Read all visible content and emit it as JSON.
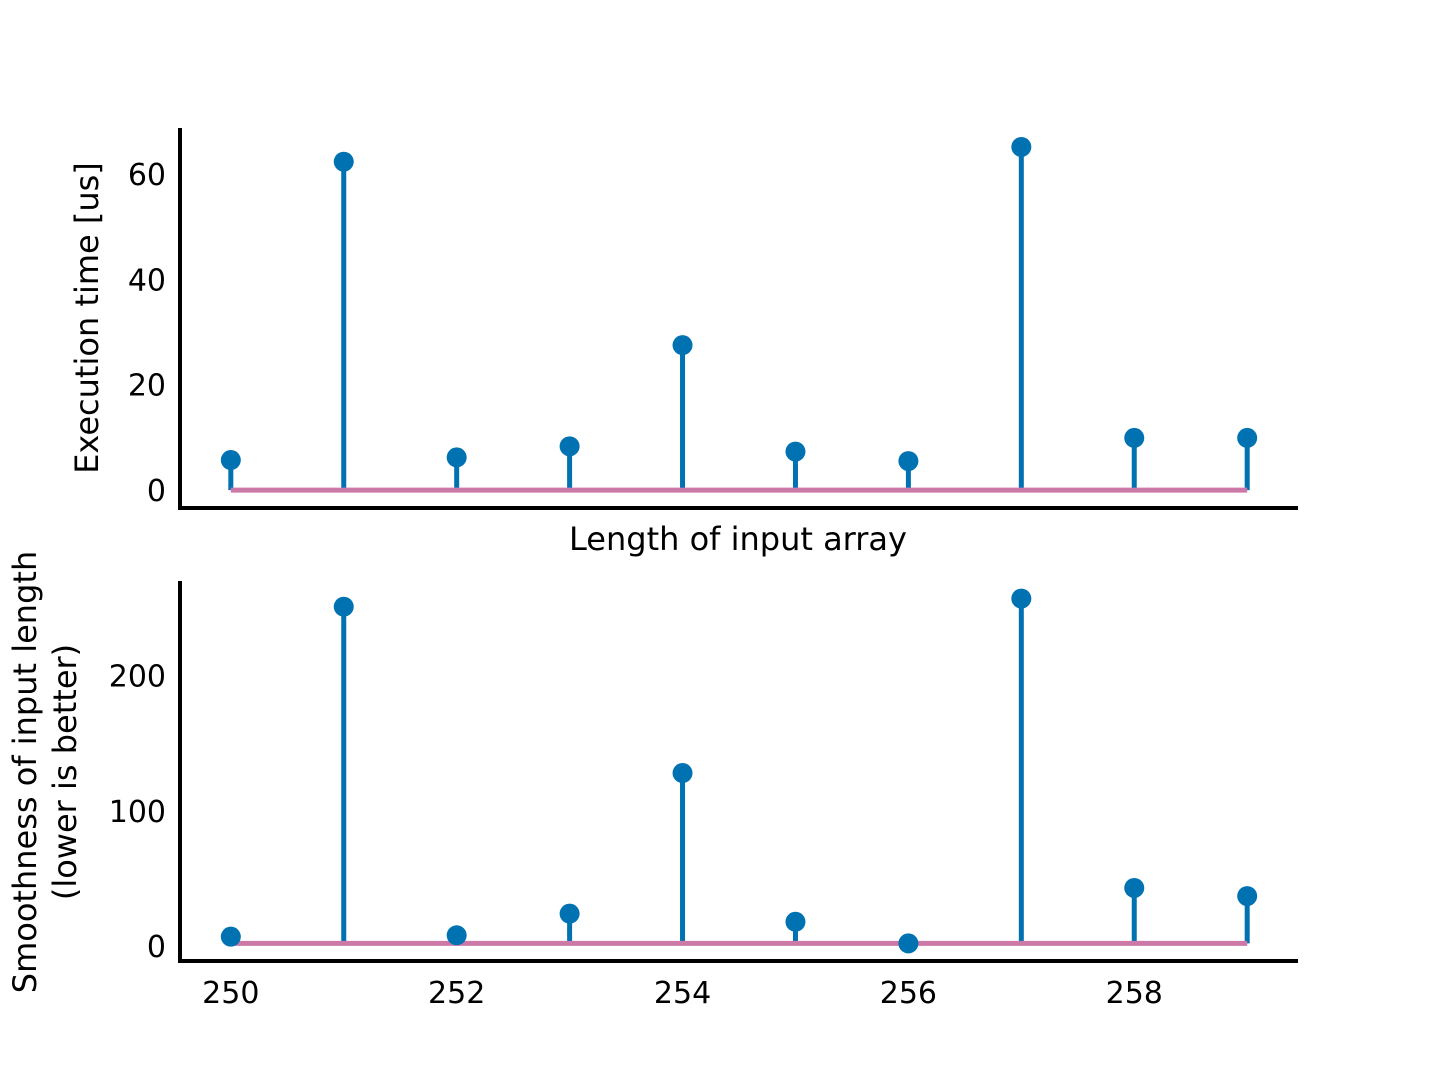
{
  "chart_data": [
    {
      "type": "stem",
      "xlabel": "Length of input array",
      "ylabel": "Execution time [us]",
      "x": [
        250,
        251,
        252,
        253,
        254,
        255,
        256,
        257,
        258,
        259
      ],
      "values": [
        5.7,
        62.3,
        6.2,
        8.3,
        27.5,
        7.3,
        5.5,
        65.1,
        9.9,
        9.9
      ],
      "baseline": 0,
      "xlim": [
        249.55,
        259.45
      ],
      "ylim": [
        -3.4,
        68.7
      ],
      "yticks": [
        0,
        20,
        40,
        60
      ],
      "xticks": [],
      "stem_color": "#0072b2",
      "baseline_color": "#cc79a7"
    },
    {
      "type": "stem",
      "ylabel": [
        "Smoothness of input length",
        "(lower is better)"
      ],
      "x": [
        250,
        251,
        252,
        253,
        254,
        255,
        256,
        257,
        258,
        259
      ],
      "values": [
        7,
        251,
        8,
        24,
        128,
        18,
        2,
        257,
        43,
        37
      ],
      "baseline": 2,
      "xlim": [
        249.55,
        259.45
      ],
      "ylim": [
        -11,
        270
      ],
      "yticks": [
        0,
        100,
        200
      ],
      "xticks": [
        250,
        252,
        254,
        256,
        258
      ],
      "stem_color": "#0072b2",
      "baseline_color": "#cc79a7"
    }
  ]
}
